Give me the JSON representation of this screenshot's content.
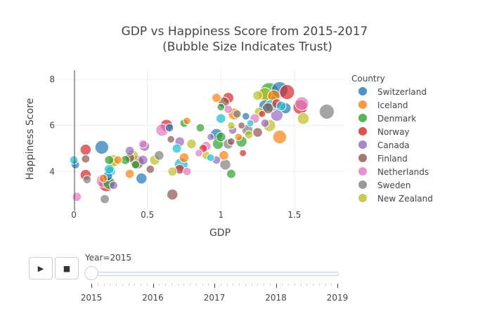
{
  "chart_data": {
    "type": "scatter",
    "title": "GDP vs Happiness Score from 2015-2017",
    "subtitle": "(Bubble Size Indicates Trust)",
    "xlabel": "GDP",
    "ylabel": "Happiness Score",
    "xlim": [
      -0.12,
      1.84
    ],
    "ylim": [
      2.3,
      8.4
    ],
    "x_ticks": [
      "0",
      "0.5",
      "1",
      "1.5"
    ],
    "y_ticks": [
      "4",
      "6",
      "8"
    ],
    "grid": true,
    "legend_position": "right",
    "legend_title": "Country",
    "series": [
      {
        "name": "Switzerland",
        "color": "#1f77b4"
      },
      {
        "name": "Iceland",
        "color": "#ff7f0e"
      },
      {
        "name": "Denmark",
        "color": "#2ca02c"
      },
      {
        "name": "Norway",
        "color": "#d62728"
      },
      {
        "name": "Canada",
        "color": "#9467bd"
      },
      {
        "name": "Finland",
        "color": "#8c564b"
      },
      {
        "name": "Netherlands",
        "color": "#e377c2"
      },
      {
        "name": "Sweden",
        "color": "#7f7f7f"
      },
      {
        "name": "New Zealand",
        "color": "#bcbd22"
      },
      {
        "name": "",
        "color": "#17becf"
      }
    ],
    "points": [
      [
        1.4,
        7.55,
        0.45,
        0
      ],
      [
        1.33,
        7.45,
        0.55,
        2
      ],
      [
        1.3,
        7.35,
        0.35,
        8
      ],
      [
        1.45,
        7.45,
        0.4,
        3
      ],
      [
        1.36,
        7.28,
        0.3,
        1
      ],
      [
        1.25,
        7.3,
        0.2,
        8
      ],
      [
        1.55,
        6.95,
        0.35,
        6
      ],
      [
        1.44,
        6.75,
        0.25,
        0
      ],
      [
        1.54,
        6.8,
        0.38,
        3
      ],
      [
        1.3,
        6.85,
        0.3,
        0
      ],
      [
        1.32,
        6.75,
        0.25,
        5
      ],
      [
        1.38,
        6.95,
        0.2,
        3
      ],
      [
        1.41,
        6.85,
        0.2,
        9
      ],
      [
        1.26,
        6.58,
        0.2,
        8
      ],
      [
        1.38,
        6.45,
        0.3,
        4
      ],
      [
        1.34,
        6.85,
        0.3,
        9
      ],
      [
        1.72,
        6.6,
        0.4,
        7
      ],
      [
        1.56,
        6.3,
        0.28,
        8
      ],
      [
        1.33,
        6.0,
        0.3,
        8
      ],
      [
        1.4,
        5.5,
        0.35,
        1
      ],
      [
        1.23,
        6.3,
        0.2,
        6
      ],
      [
        1.25,
        5.7,
        0.2,
        5
      ],
      [
        1.3,
        6.1,
        0.15,
        4
      ],
      [
        1.28,
        6.5,
        0.1,
        3
      ],
      [
        1.17,
        6.4,
        0.12,
        0
      ],
      [
        1.2,
        6.1,
        0.1,
        9
      ],
      [
        1.11,
        6.5,
        0.15,
        7
      ],
      [
        1.05,
        6.7,
        0.15,
        6
      ],
      [
        1.0,
        6.8,
        0.12,
        2
      ],
      [
        1.05,
        7.2,
        0.25,
        3
      ],
      [
        0.97,
        7.2,
        0.18,
        1
      ],
      [
        1.02,
        7.0,
        0.25,
        5
      ],
      [
        1.07,
        6.0,
        0.12,
        8
      ],
      [
        1.08,
        5.8,
        0.15,
        4
      ],
      [
        1.0,
        6.3,
        0.2,
        9
      ],
      [
        1.09,
        6.5,
        0.28,
        1
      ],
      [
        0.97,
        5.6,
        0.3,
        0
      ],
      [
        1.0,
        5.5,
        0.2,
        2
      ],
      [
        1.07,
        5.3,
        0.12,
        5
      ],
      [
        1.05,
        5.2,
        0.22,
        7
      ],
      [
        0.9,
        5.1,
        0.2,
        6
      ],
      [
        0.98,
        5.2,
        0.25,
        2
      ],
      [
        1.02,
        4.7,
        0.2,
        1
      ],
      [
        0.93,
        4.6,
        0.12,
        9
      ],
      [
        0.97,
        4.5,
        0.15,
        4
      ],
      [
        1.03,
        4.3,
        0.25,
        7
      ],
      [
        1.07,
        3.9,
        0.18,
        2
      ],
      [
        0.9,
        4.7,
        0.15,
        8
      ],
      [
        0.85,
        4.8,
        0.12,
        6
      ],
      [
        0.88,
        5.0,
        0.15,
        3
      ],
      [
        0.86,
        5.9,
        0.15,
        2
      ],
      [
        0.75,
        6.1,
        0.15,
        2
      ],
      [
        0.77,
        6.2,
        0.12,
        1
      ],
      [
        0.65,
        5.9,
        0.15,
        0
      ],
      [
        0.63,
        6.0,
        0.3,
        3
      ],
      [
        0.6,
        5.8,
        0.3,
        6
      ],
      [
        0.66,
        5.4,
        0.12,
        5
      ],
      [
        0.72,
        5.3,
        0.2,
        4
      ],
      [
        0.8,
        5.2,
        0.2,
        8
      ],
      [
        0.7,
        5.0,
        0.18,
        9
      ],
      [
        0.75,
        4.6,
        0.2,
        1
      ],
      [
        0.73,
        4.3,
        0.35,
        9
      ],
      [
        0.72,
        4.1,
        0.2,
        3
      ],
      [
        0.77,
        4.0,
        0.15,
        6
      ],
      [
        0.67,
        4.0,
        0.18,
        8
      ],
      [
        0.58,
        4.7,
        0.2,
        7
      ],
      [
        0.55,
        4.5,
        0.22,
        8
      ],
      [
        0.48,
        5.1,
        0.22,
        4
      ],
      [
        0.47,
        5.2,
        0.15,
        6
      ],
      [
        0.47,
        4.5,
        0.2,
        4
      ],
      [
        0.43,
        4.4,
        0.35,
        5
      ],
      [
        0.42,
        4.3,
        0.15,
        2
      ],
      [
        0.38,
        4.9,
        0.18,
        4
      ],
      [
        0.4,
        4.7,
        0.25,
        8
      ],
      [
        0.38,
        4.6,
        0.2,
        5
      ],
      [
        0.35,
        4.5,
        0.18,
        2
      ],
      [
        0.3,
        4.5,
        0.15,
        1
      ],
      [
        0.27,
        4.5,
        0.25,
        8
      ],
      [
        0.27,
        4.4,
        0.2,
        8
      ],
      [
        0.24,
        4.5,
        0.18,
        2
      ],
      [
        0.19,
        5.05,
        0.35,
        0
      ],
      [
        0.25,
        4.0,
        0.2,
        9
      ],
      [
        0.23,
        3.8,
        0.2,
        0
      ],
      [
        0.2,
        3.7,
        0.15,
        1
      ],
      [
        0.24,
        3.5,
        0.3,
        2
      ],
      [
        0.22,
        3.45,
        0.4,
        3
      ],
      [
        0.2,
        3.6,
        0.35,
        6
      ],
      [
        0.27,
        3.4,
        0.15,
        4
      ],
      [
        0.38,
        3.9,
        0.18,
        1
      ],
      [
        0.46,
        3.7,
        0.25,
        0
      ],
      [
        0.52,
        4.1,
        0.15,
        5
      ],
      [
        0.67,
        3.0,
        0.25,
        5
      ],
      [
        0.08,
        4.95,
        0.25,
        3
      ],
      [
        0.08,
        4.55,
        0.15,
        5
      ],
      [
        0.08,
        3.85,
        0.25,
        3
      ],
      [
        0.09,
        3.65,
        0.15,
        7
      ],
      [
        0.01,
        4.3,
        0.15,
        0
      ],
      [
        0.0,
        4.5,
        0.15,
        9
      ],
      [
        0.02,
        2.9,
        0.18,
        6
      ],
      [
        0.21,
        2.8,
        0.18,
        7
      ],
      [
        0.24,
        4.1,
        0.2,
        9
      ],
      [
        1.14,
        6.0,
        0.1,
        5
      ],
      [
        1.15,
        4.8,
        0.1,
        3
      ],
      [
        1.18,
        5.8,
        0.25,
        7
      ],
      [
        1.19,
        5.6,
        0.15,
        8
      ],
      [
        1.12,
        5.5,
        0.12,
        1
      ],
      [
        1.14,
        5.3,
        0.25,
        2
      ],
      [
        0.93,
        5.5,
        0.1,
        4
      ]
    ]
  },
  "controls": {
    "play_icon": "play-icon",
    "stop_icon": "stop-icon",
    "play_glyph": "▶",
    "stop_glyph": "■"
  },
  "slider": {
    "label": "Year=2015",
    "current": "2015",
    "steps": [
      "2015",
      "2016",
      "2017",
      "2018",
      "2019"
    ]
  }
}
